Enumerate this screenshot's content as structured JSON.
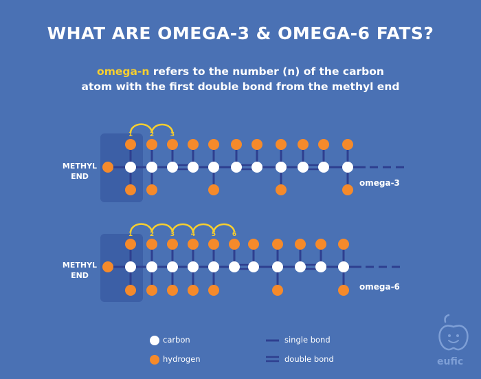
{
  "title": "WHAT ARE OMEGA-3 & OMEGA-6 FATS?",
  "subtitle": {
    "highlight": "omega-n",
    "line1_rest": " refers to the number (n) of the carbon",
    "line2": "atom with the first double bond from the methyl end"
  },
  "methyl_label": [
    "METHYL",
    "END"
  ],
  "chains": [
    {
      "label": "omega-3",
      "number_labels": [
        "1",
        "2",
        "3"
      ],
      "double_bond_after_carbon": [
        3,
        6,
        9
      ]
    },
    {
      "label": "omega-6",
      "number_labels": [
        "1",
        "2",
        "3",
        "4",
        "5",
        "6"
      ],
      "double_bond_after_carbon": [
        6,
        9
      ]
    }
  ],
  "legend": {
    "carbon": "carbon",
    "hydrogen": "hydrogen",
    "single_bond": "single bond",
    "double_bond": "double bond"
  },
  "colors": {
    "background": "#4a71b4",
    "bond": "#2e3f8f",
    "carbon": "#ffffff",
    "hydrogen": "#f58a2b",
    "arc": "#f7cf2f",
    "methyl_box": "#3c5fa6"
  },
  "logo": "eufic"
}
